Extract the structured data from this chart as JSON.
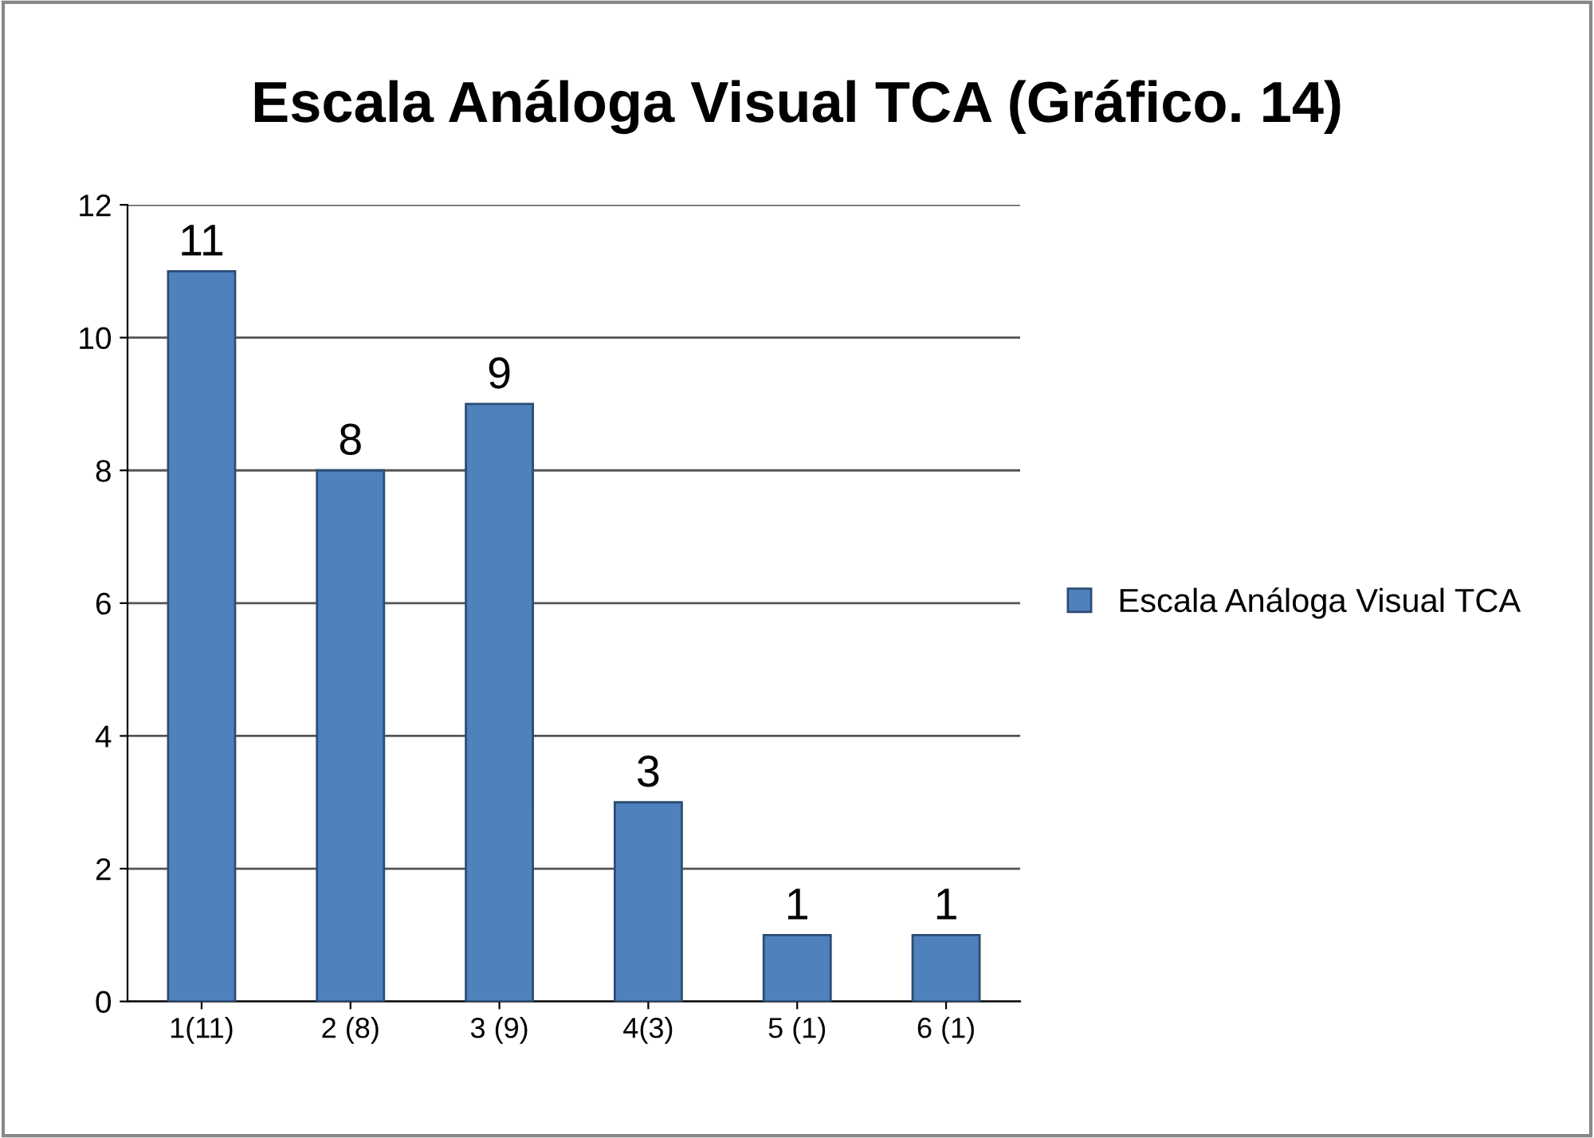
{
  "chart_data": {
    "type": "bar",
    "title": "Escala Análoga Visual TCA (Gráfico. 14)",
    "categories": [
      "1(11)",
      "2 (8)",
      "3 (9)",
      "4(3)",
      "5 (1)",
      "6 (1)"
    ],
    "series": [
      {
        "name": "Escala Análoga Visual TCA",
        "color": "#4f81bd",
        "values": [
          11,
          8,
          9,
          3,
          1,
          1
        ]
      }
    ],
    "ylim": [
      0,
      12
    ],
    "yticks": [
      0,
      2,
      4,
      6,
      8,
      10,
      12
    ],
    "grid": "y",
    "legend": "right",
    "data_labels": true
  }
}
